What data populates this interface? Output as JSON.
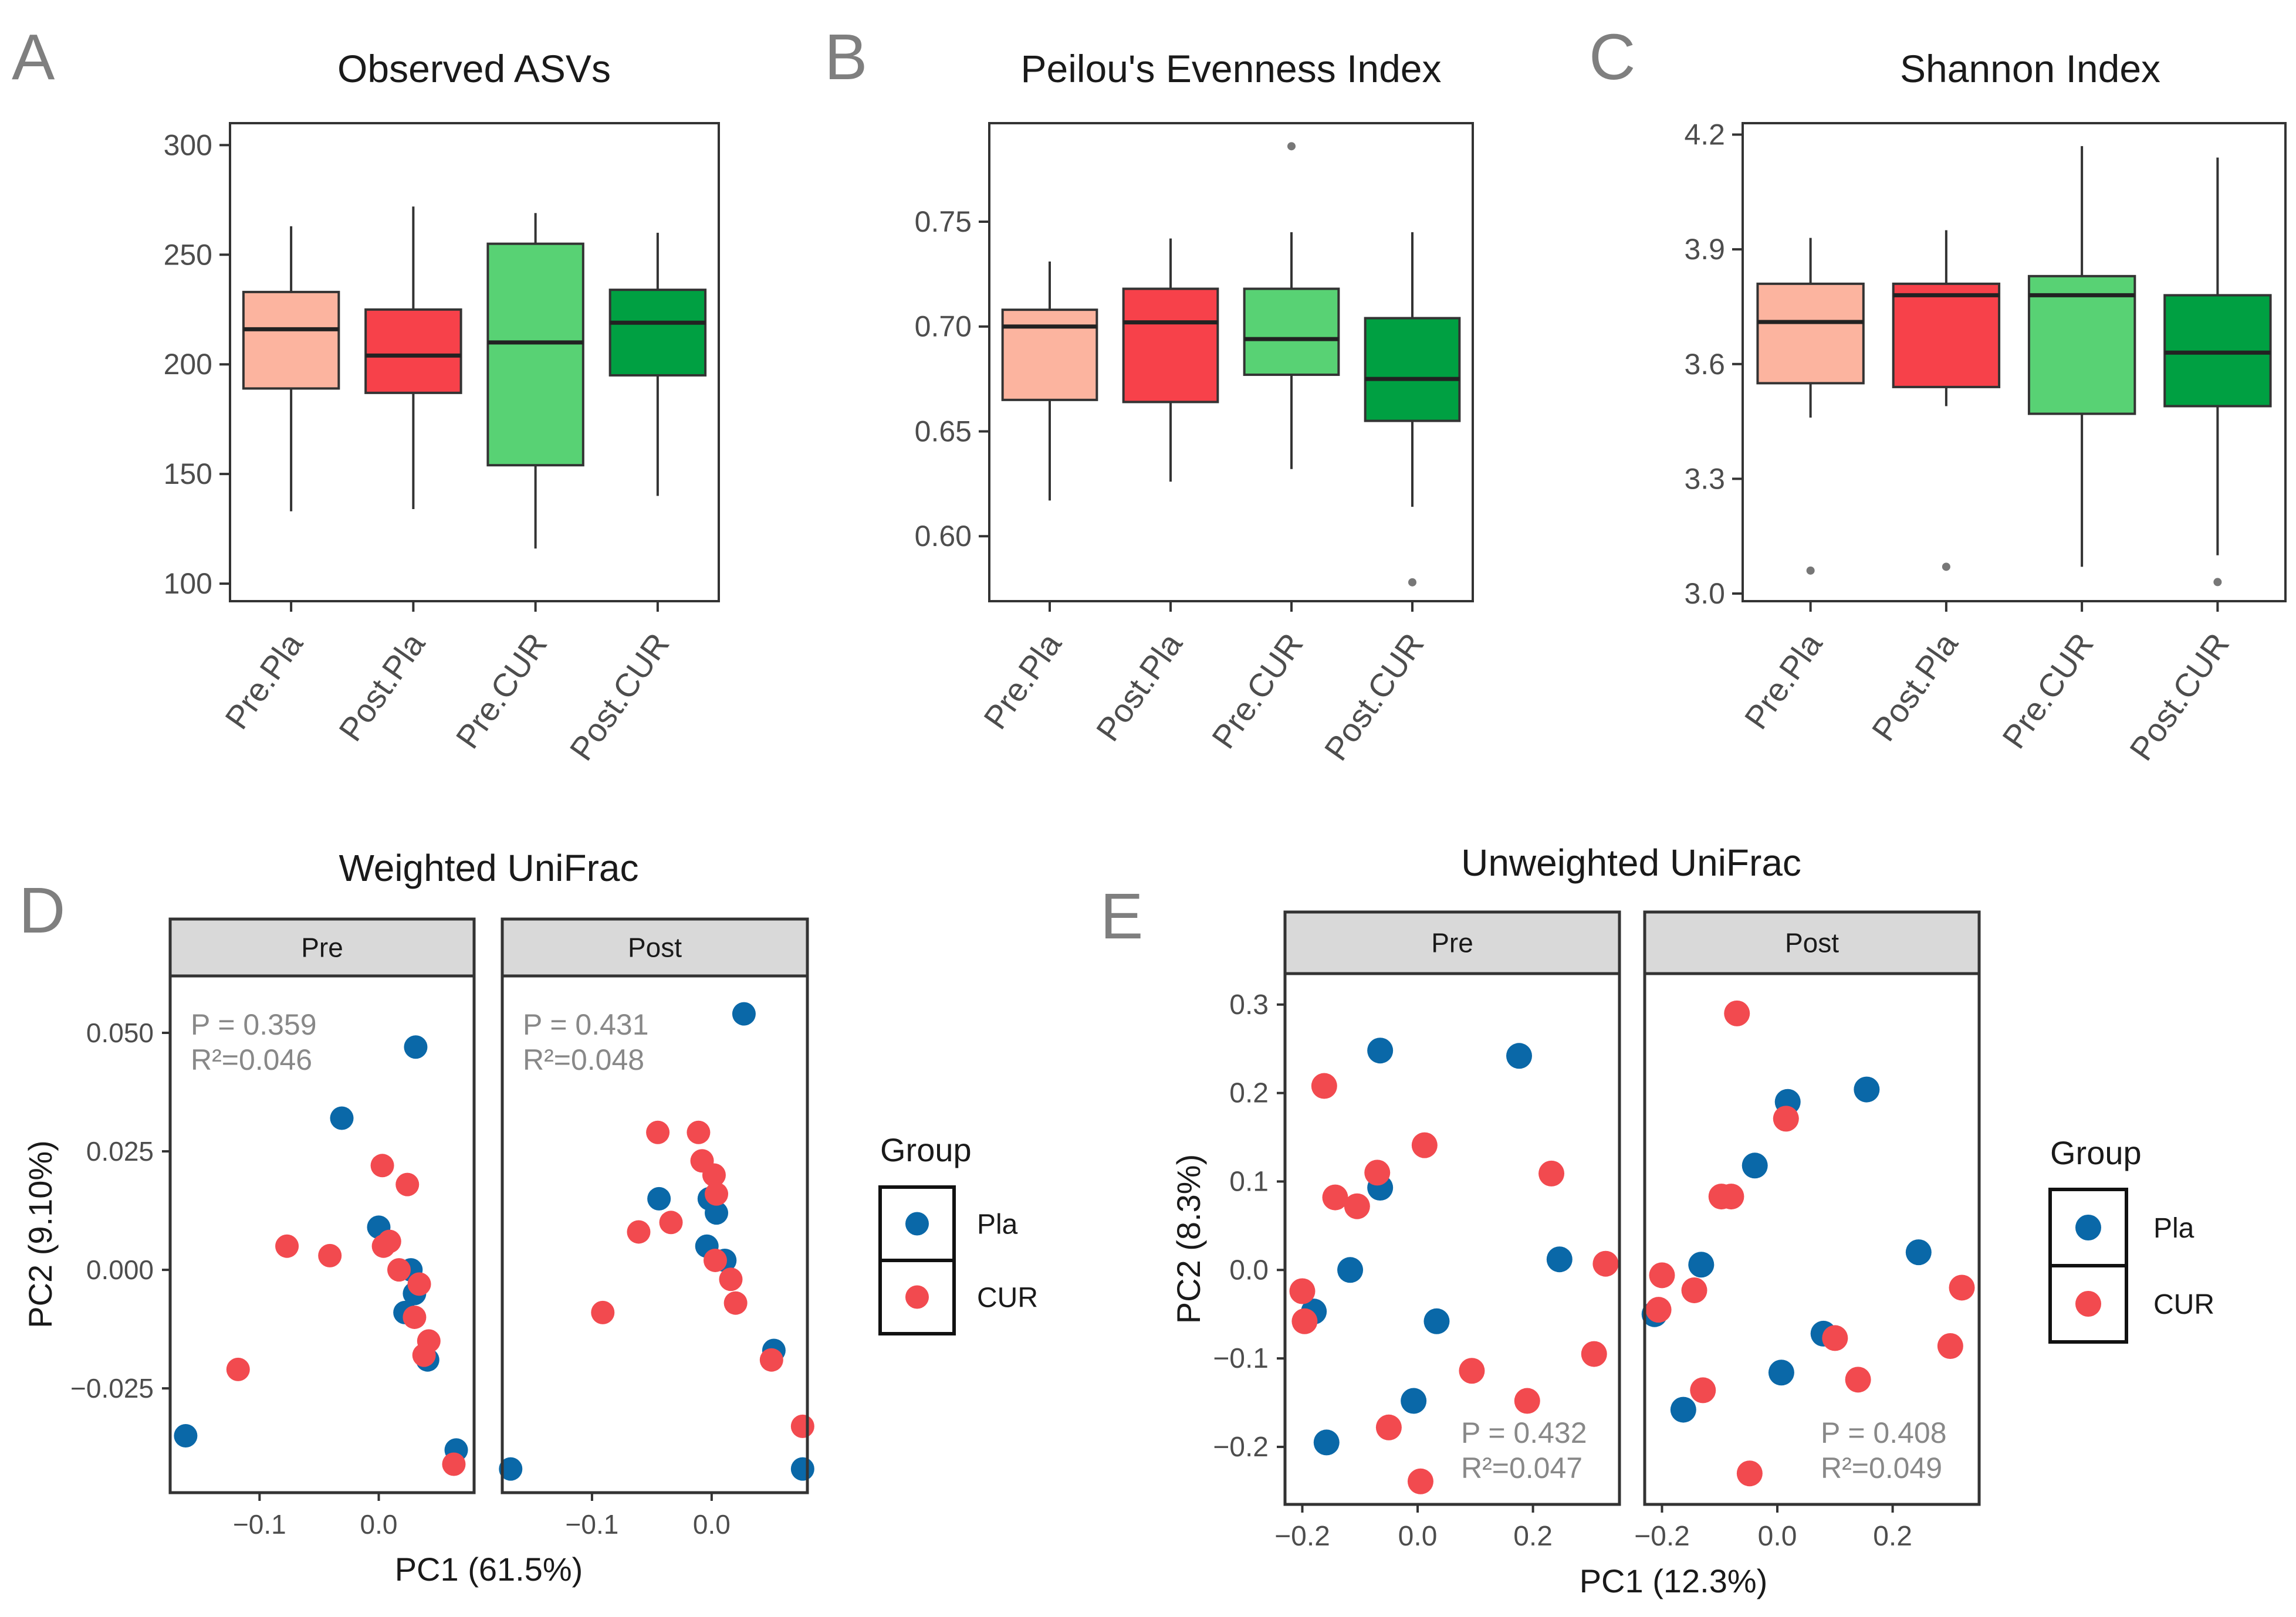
{
  "colors": {
    "Pre.Pla": "#fcb49f",
    "Post.Pla": "#f7414a",
    "Pre.CUR": "#58d274",
    "Post.CUR": "#00a042",
    "Pla": "#0a68a8",
    "CUR": "#f24a4f",
    "axis": "#333333",
    "tick_text": "#4d4d4d",
    "strip_fill": "#d9d9d9",
    "stat_text": "#888888",
    "panel_letter": "#7f7f7f"
  },
  "chart_data": [
    {
      "type": "box",
      "id": "A",
      "panel_letter": "A",
      "title": "Observed ASVs",
      "categories": [
        "Pre.Pla",
        "Post.Pla",
        "Pre.CUR",
        "Post.CUR"
      ],
      "ylim": [
        92,
        310
      ],
      "yticks": [
        100,
        150,
        200,
        250,
        300
      ],
      "ytick_labels": [
        "100",
        "150",
        "200",
        "250",
        "300"
      ],
      "boxes": [
        {
          "category": "Pre.Pla",
          "whislo": 133,
          "q1": 189,
          "med": 216,
          "q3": 233,
          "whishi": 263,
          "outliers": []
        },
        {
          "category": "Post.Pla",
          "whislo": 134,
          "q1": 187,
          "med": 204,
          "q3": 225,
          "whishi": 272,
          "outliers": []
        },
        {
          "category": "Pre.CUR",
          "whislo": 116,
          "q1": 154,
          "med": 210,
          "q3": 255,
          "whishi": 269,
          "outliers": []
        },
        {
          "category": "Post.CUR",
          "whislo": 140,
          "q1": 195,
          "med": 219,
          "q3": 234,
          "whishi": 260,
          "outliers": []
        }
      ]
    },
    {
      "type": "box",
      "id": "B",
      "panel_letter": "B",
      "title": "Peilou's Evenness Index",
      "categories": [
        "Pre.Pla",
        "Post.Pla",
        "Pre.CUR",
        "Post.CUR"
      ],
      "ylim": [
        0.569,
        0.797
      ],
      "yticks": [
        0.6,
        0.65,
        0.7,
        0.75
      ],
      "ytick_labels": [
        "0.60",
        "0.65",
        "0.70",
        "0.75"
      ],
      "boxes": [
        {
          "category": "Pre.Pla",
          "whislo": 0.617,
          "q1": 0.665,
          "med": 0.7,
          "q3": 0.708,
          "whishi": 0.731,
          "outliers": []
        },
        {
          "category": "Post.Pla",
          "whislo": 0.626,
          "q1": 0.664,
          "med": 0.702,
          "q3": 0.718,
          "whishi": 0.742,
          "outliers": []
        },
        {
          "category": "Pre.CUR",
          "whislo": 0.632,
          "q1": 0.677,
          "med": 0.694,
          "q3": 0.718,
          "whishi": 0.745,
          "outliers": [
            0.786
          ]
        },
        {
          "category": "Post.CUR",
          "whislo": 0.614,
          "q1": 0.655,
          "med": 0.675,
          "q3": 0.704,
          "whishi": 0.745,
          "outliers": [
            0.578
          ]
        }
      ]
    },
    {
      "type": "box",
      "id": "C",
      "panel_letter": "C",
      "title": "Shannon Index",
      "categories": [
        "Pre.Pla",
        "Post.Pla",
        "Pre.CUR",
        "Post.CUR"
      ],
      "ylim": [
        2.98,
        4.23
      ],
      "yticks": [
        3.0,
        3.3,
        3.6,
        3.9,
        4.2
      ],
      "ytick_labels": [
        "3.0",
        "3.3",
        "3.6",
        "3.9",
        "4.2"
      ],
      "boxes": [
        {
          "category": "Pre.Pla",
          "whislo": 3.46,
          "q1": 3.55,
          "med": 3.71,
          "q3": 3.81,
          "whishi": 3.93,
          "outliers": [
            3.06
          ]
        },
        {
          "category": "Post.Pla",
          "whislo": 3.49,
          "q1": 3.54,
          "med": 3.78,
          "q3": 3.81,
          "whishi": 3.95,
          "outliers": [
            3.07
          ]
        },
        {
          "category": "Pre.CUR",
          "whislo": 3.07,
          "q1": 3.47,
          "med": 3.78,
          "q3": 3.83,
          "whishi": 4.17,
          "outliers": []
        },
        {
          "category": "Post.CUR",
          "whislo": 3.1,
          "q1": 3.49,
          "med": 3.63,
          "q3": 3.78,
          "whishi": 4.14,
          "outliers": [
            3.03
          ]
        }
      ]
    },
    {
      "type": "scatter",
      "id": "D",
      "panel_letter": "D",
      "title": "Weighted UniFrac",
      "xlabel": "PC1 (61.5%)",
      "ylabel": "PC2 (9.10%)",
      "xlim": [
        -0.175,
        0.08
      ],
      "ylim": [
        -0.047,
        0.062
      ],
      "xticks": [
        -0.1,
        0.0
      ],
      "xtick_labels": [
        "−0.1",
        "0.0"
      ],
      "yticks": [
        -0.025,
        0.0,
        0.025,
        0.05
      ],
      "ytick_labels": [
        "−0.025",
        "0.000",
        "0.025",
        "0.050"
      ],
      "legend_title": "Group",
      "legend_entries": [
        "Pla",
        "CUR"
      ],
      "facets": [
        {
          "label": "Pre",
          "stat_p": "P = 0.359",
          "stat_r2": "R²=0.046",
          "stat_loc": "top-left",
          "points": [
            {
              "group": "Pla",
              "x": 0.031,
              "y": 0.047
            },
            {
              "group": "Pla",
              "x": -0.031,
              "y": 0.032
            },
            {
              "group": "Pla",
              "x": 0.0,
              "y": 0.009
            },
            {
              "group": "Pla",
              "x": 0.027,
              "y": 0.0
            },
            {
              "group": "Pla",
              "x": 0.03,
              "y": -0.005
            },
            {
              "group": "Pla",
              "x": 0.022,
              "y": -0.009
            },
            {
              "group": "Pla",
              "x": 0.041,
              "y": -0.019
            },
            {
              "group": "Pla",
              "x": 0.065,
              "y": -0.038
            },
            {
              "group": "Pla",
              "x": -0.162,
              "y": -0.035
            },
            {
              "group": "CUR",
              "x": 0.003,
              "y": 0.022
            },
            {
              "group": "CUR",
              "x": 0.024,
              "y": 0.018
            },
            {
              "group": "CUR",
              "x": 0.009,
              "y": 0.006
            },
            {
              "group": "CUR",
              "x": 0.004,
              "y": 0.005
            },
            {
              "group": "CUR",
              "x": -0.077,
              "y": 0.005
            },
            {
              "group": "CUR",
              "x": -0.041,
              "y": 0.003
            },
            {
              "group": "CUR",
              "x": 0.017,
              "y": 0.0
            },
            {
              "group": "CUR",
              "x": 0.034,
              "y": -0.003
            },
            {
              "group": "CUR",
              "x": 0.03,
              "y": -0.01
            },
            {
              "group": "CUR",
              "x": 0.042,
              "y": -0.015
            },
            {
              "group": "CUR",
              "x": 0.038,
              "y": -0.018
            },
            {
              "group": "CUR",
              "x": -0.118,
              "y": -0.021
            },
            {
              "group": "CUR",
              "x": 0.063,
              "y": -0.041
            }
          ]
        },
        {
          "label": "Post",
          "stat_p": "P = 0.431",
          "stat_r2": "R²=0.048",
          "stat_loc": "top-left",
          "points": [
            {
              "group": "Pla",
              "x": 0.027,
              "y": 0.054
            },
            {
              "group": "Pla",
              "x": -0.044,
              "y": 0.015
            },
            {
              "group": "Pla",
              "x": -0.002,
              "y": 0.015
            },
            {
              "group": "Pla",
              "x": 0.004,
              "y": 0.012
            },
            {
              "group": "Pla",
              "x": -0.004,
              "y": 0.005
            },
            {
              "group": "Pla",
              "x": 0.011,
              "y": 0.002
            },
            {
              "group": "Pla",
              "x": 0.052,
              "y": -0.017
            },
            {
              "group": "Pla",
              "x": -0.168,
              "y": -0.042
            },
            {
              "group": "Pla",
              "x": 0.076,
              "y": -0.042
            },
            {
              "group": "CUR",
              "x": -0.045,
              "y": 0.029
            },
            {
              "group": "CUR",
              "x": -0.011,
              "y": 0.029
            },
            {
              "group": "CUR",
              "x": -0.008,
              "y": 0.023
            },
            {
              "group": "CUR",
              "x": 0.002,
              "y": 0.02
            },
            {
              "group": "CUR",
              "x": 0.004,
              "y": 0.016
            },
            {
              "group": "CUR",
              "x": -0.034,
              "y": 0.01
            },
            {
              "group": "CUR",
              "x": -0.061,
              "y": 0.008
            },
            {
              "group": "CUR",
              "x": 0.003,
              "y": 0.002
            },
            {
              "group": "CUR",
              "x": 0.016,
              "y": -0.002
            },
            {
              "group": "CUR",
              "x": 0.02,
              "y": -0.007
            },
            {
              "group": "CUR",
              "x": -0.091,
              "y": -0.009
            },
            {
              "group": "CUR",
              "x": 0.05,
              "y": -0.019
            },
            {
              "group": "CUR",
              "x": 0.076,
              "y": -0.033
            }
          ]
        }
      ]
    },
    {
      "type": "scatter",
      "id": "E",
      "panel_letter": "E",
      "title": "Unweighted UniFrac",
      "xlabel": "PC1 (12.3%)",
      "ylabel": "PC2 (8.3%)",
      "xlim": [
        -0.23,
        0.35
      ],
      "ylim": [
        -0.265,
        0.335
      ],
      "xticks": [
        -0.2,
        0.0,
        0.2
      ],
      "xtick_labels": [
        "−0.2",
        "0.0",
        "0.2"
      ],
      "yticks": [
        -0.2,
        -0.1,
        0.0,
        0.1,
        0.2,
        0.3
      ],
      "ytick_labels": [
        "−0.2",
        "−0.1",
        "0.0",
        "0.1",
        "0.2",
        "0.3"
      ],
      "legend_title": "Group",
      "legend_entries": [
        "Pla",
        "CUR"
      ],
      "facets": [
        {
          "label": "Pre",
          "stat_p": "P = 0.432",
          "stat_r2": "R²=0.047",
          "stat_loc": "bottom-right",
          "points": [
            {
              "group": "Pla",
              "x": -0.065,
              "y": 0.248
            },
            {
              "group": "Pla",
              "x": 0.176,
              "y": 0.242
            },
            {
              "group": "Pla",
              "x": -0.065,
              "y": 0.093
            },
            {
              "group": "Pla",
              "x": -0.117,
              "y": 0.0
            },
            {
              "group": "Pla",
              "x": 0.246,
              "y": 0.012
            },
            {
              "group": "Pla",
              "x": -0.18,
              "y": -0.047
            },
            {
              "group": "Pla",
              "x": 0.033,
              "y": -0.058
            },
            {
              "group": "Pla",
              "x": -0.007,
              "y": -0.148
            },
            {
              "group": "Pla",
              "x": -0.158,
              "y": -0.195
            },
            {
              "group": "CUR",
              "x": -0.162,
              "y": 0.208
            },
            {
              "group": "CUR",
              "x": 0.012,
              "y": 0.141
            },
            {
              "group": "CUR",
              "x": -0.07,
              "y": 0.11
            },
            {
              "group": "CUR",
              "x": 0.232,
              "y": 0.109
            },
            {
              "group": "CUR",
              "x": -0.143,
              "y": 0.082
            },
            {
              "group": "CUR",
              "x": -0.105,
              "y": 0.072
            },
            {
              "group": "CUR",
              "x": 0.326,
              "y": 0.007
            },
            {
              "group": "CUR",
              "x": -0.2,
              "y": -0.024
            },
            {
              "group": "CUR",
              "x": -0.196,
              "y": -0.058
            },
            {
              "group": "CUR",
              "x": 0.306,
              "y": -0.095
            },
            {
              "group": "CUR",
              "x": 0.094,
              "y": -0.114
            },
            {
              "group": "CUR",
              "x": 0.19,
              "y": -0.148
            },
            {
              "group": "CUR",
              "x": -0.05,
              "y": -0.178
            },
            {
              "group": "CUR",
              "x": 0.005,
              "y": -0.239
            }
          ]
        },
        {
          "label": "Post",
          "stat_p": "P = 0.408",
          "stat_r2": "R²=0.049",
          "stat_loc": "bottom-right",
          "points": [
            {
              "group": "Pla",
              "x": 0.155,
              "y": 0.204
            },
            {
              "group": "Pla",
              "x": 0.018,
              "y": 0.19
            },
            {
              "group": "Pla",
              "x": -0.039,
              "y": 0.118
            },
            {
              "group": "Pla",
              "x": 0.245,
              "y": 0.02
            },
            {
              "group": "Pla",
              "x": -0.132,
              "y": 0.006
            },
            {
              "group": "Pla",
              "x": -0.213,
              "y": -0.05
            },
            {
              "group": "Pla",
              "x": 0.08,
              "y": -0.072
            },
            {
              "group": "Pla",
              "x": 0.007,
              "y": -0.116
            },
            {
              "group": "Pla",
              "x": -0.163,
              "y": -0.158
            },
            {
              "group": "CUR",
              "x": -0.07,
              "y": 0.29
            },
            {
              "group": "CUR",
              "x": 0.015,
              "y": 0.171
            },
            {
              "group": "CUR",
              "x": -0.097,
              "y": 0.083
            },
            {
              "group": "CUR",
              "x": -0.08,
              "y": 0.083
            },
            {
              "group": "CUR",
              "x": -0.2,
              "y": -0.006
            },
            {
              "group": "CUR",
              "x": -0.144,
              "y": -0.023
            },
            {
              "group": "CUR",
              "x": 0.32,
              "y": -0.02
            },
            {
              "group": "CUR",
              "x": -0.206,
              "y": -0.045
            },
            {
              "group": "CUR",
              "x": 0.1,
              "y": -0.077
            },
            {
              "group": "CUR",
              "x": 0.3,
              "y": -0.086
            },
            {
              "group": "CUR",
              "x": 0.14,
              "y": -0.124
            },
            {
              "group": "CUR",
              "x": -0.129,
              "y": -0.136
            },
            {
              "group": "CUR",
              "x": -0.048,
              "y": -0.23
            }
          ]
        }
      ]
    }
  ]
}
